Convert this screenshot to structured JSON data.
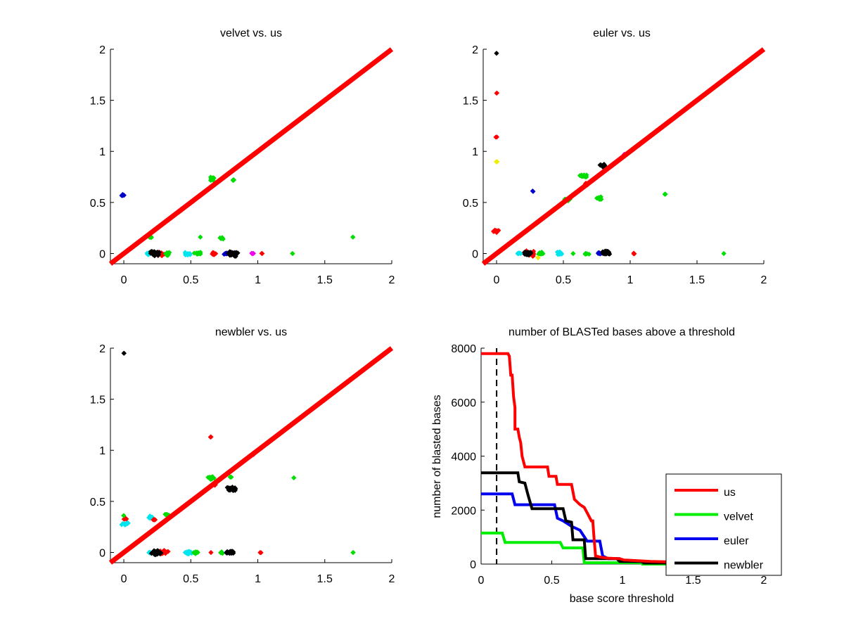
{
  "chart_data": [
    {
      "type": "scatter",
      "title": "velvet vs. us",
      "xlabel": "",
      "ylabel": "",
      "xlim": [
        -0.1,
        2
      ],
      "ylim": [
        -0.1,
        2
      ],
      "xticks": [
        "0",
        "0.5",
        "1",
        "1.5",
        "2"
      ],
      "yticks": [
        "0",
        "0.5",
        "1",
        "1.5",
        "2"
      ],
      "grid": false,
      "reference_line": {
        "from": [
          -0.1,
          -0.1
        ],
        "to": [
          2,
          2
        ],
        "color": "#ff0000"
      },
      "clusters": [
        {
          "color": "#0000cc",
          "x": -0.01,
          "y": 0.57,
          "spread": 0.02,
          "n": 10
        },
        {
          "color": "#00dd00",
          "x": 0.66,
          "y": 0.73,
          "spread": 0.03,
          "n": 16
        },
        {
          "color": "#00dd00",
          "x": 0.82,
          "y": 0.72,
          "spread": 0.01,
          "n": 5
        },
        {
          "color": "#00dd00",
          "x": 0.2,
          "y": 0.16,
          "spread": 0.015,
          "n": 6
        },
        {
          "color": "#00dd00",
          "x": 0.57,
          "y": 0.16,
          "spread": 0.003,
          "n": 2
        },
        {
          "color": "#00dd00",
          "x": 0.73,
          "y": 0.15,
          "spread": 0.015,
          "n": 8
        },
        {
          "color": "#00dd00",
          "x": 1.71,
          "y": 0.16,
          "spread": 0.003,
          "n": 2
        },
        {
          "color": "#00e5ee",
          "x": 0.18,
          "y": 0.0,
          "spread": 0.02,
          "n": 10
        },
        {
          "color": "#ff0000",
          "x": 0.27,
          "y": 0.0,
          "spread": 0.04,
          "n": 20
        },
        {
          "color": "#000000",
          "x": 0.23,
          "y": 0.0,
          "spread": 0.035,
          "n": 40
        },
        {
          "color": "#00dd00",
          "x": 0.33,
          "y": 0.0,
          "spread": 0.025,
          "n": 14
        },
        {
          "color": "#00e5ee",
          "x": 0.47,
          "y": 0.0,
          "spread": 0.025,
          "n": 16
        },
        {
          "color": "#00dd00",
          "x": 0.55,
          "y": 0.0,
          "spread": 0.025,
          "n": 12
        },
        {
          "color": "#ff0000",
          "x": 0.67,
          "y": 0.0,
          "spread": 0.025,
          "n": 14
        },
        {
          "color": "#0000cc",
          "x": 0.76,
          "y": 0.0,
          "spread": 0.015,
          "n": 8
        },
        {
          "color": "#000000",
          "x": 0.81,
          "y": 0.0,
          "spread": 0.04,
          "n": 45
        },
        {
          "color": "#ee00ee",
          "x": 0.96,
          "y": 0.0,
          "spread": 0.01,
          "n": 6
        },
        {
          "color": "#ff0000",
          "x": 1.03,
          "y": 0.0,
          "spread": 0.005,
          "n": 3
        },
        {
          "color": "#00dd00",
          "x": 1.26,
          "y": 0.0,
          "spread": 0.003,
          "n": 2
        }
      ]
    },
    {
      "type": "scatter",
      "title": "euler vs. us",
      "xlabel": "",
      "ylabel": "",
      "xlim": [
        -0.1,
        2
      ],
      "ylim": [
        -0.1,
        2
      ],
      "xticks": [
        "0",
        "0.5",
        "1",
        "1.5",
        "2"
      ],
      "yticks": [
        "0",
        "0.5",
        "1",
        "1.5",
        "2"
      ],
      "grid": false,
      "reference_line": {
        "from": [
          -0.1,
          -0.1
        ],
        "to": [
          2,
          2
        ],
        "color": "#ff0000"
      },
      "clusters": [
        {
          "color": "#000000",
          "x": 0.0,
          "y": 1.96,
          "spread": 0.003,
          "n": 2
        },
        {
          "color": "#ff0000",
          "x": 0.0,
          "y": 1.57,
          "spread": 0.003,
          "n": 2
        },
        {
          "color": "#ff0000",
          "x": 0.0,
          "y": 1.14,
          "spread": 0.005,
          "n": 3
        },
        {
          "color": "#eeee00",
          "x": 0.0,
          "y": 0.9,
          "spread": 0.008,
          "n": 4
        },
        {
          "color": "#ff0000",
          "x": 0.0,
          "y": 0.22,
          "spread": 0.025,
          "n": 14
        },
        {
          "color": "#0000cc",
          "x": 0.27,
          "y": 0.61,
          "spread": 0.005,
          "n": 3
        },
        {
          "color": "#00dd00",
          "x": 0.65,
          "y": 0.76,
          "spread": 0.03,
          "n": 16
        },
        {
          "color": "#ff0000",
          "x": 0.67,
          "y": 0.68,
          "spread": 0.02,
          "n": 8
        },
        {
          "color": "#00dd00",
          "x": 0.53,
          "y": 0.53,
          "spread": 0.025,
          "n": 12
        },
        {
          "color": "#00dd00",
          "x": 0.77,
          "y": 0.54,
          "spread": 0.025,
          "n": 12
        },
        {
          "color": "#000000",
          "x": 0.8,
          "y": 0.86,
          "spread": 0.025,
          "n": 22
        },
        {
          "color": "#ee00ee",
          "x": 0.96,
          "y": 0.97,
          "spread": 0.008,
          "n": 3
        },
        {
          "color": "#00dd00",
          "x": 1.26,
          "y": 0.58,
          "spread": 0.006,
          "n": 3
        },
        {
          "color": "#00e5ee",
          "x": 0.17,
          "y": 0.0,
          "spread": 0.015,
          "n": 8
        },
        {
          "color": "#ff0000",
          "x": 0.25,
          "y": 0.0,
          "spread": 0.04,
          "n": 18
        },
        {
          "color": "#000000",
          "x": 0.23,
          "y": 0.0,
          "spread": 0.03,
          "n": 40
        },
        {
          "color": "#00dd00",
          "x": 0.33,
          "y": 0.0,
          "spread": 0.025,
          "n": 14
        },
        {
          "color": "#eeee00",
          "x": 0.31,
          "y": -0.04,
          "spread": 0.005,
          "n": 2
        },
        {
          "color": "#00e5ee",
          "x": 0.47,
          "y": 0.0,
          "spread": 0.025,
          "n": 16
        },
        {
          "color": "#00dd00",
          "x": 0.57,
          "y": 0.0,
          "spread": 0.004,
          "n": 2
        },
        {
          "color": "#00dd00",
          "x": 0.67,
          "y": 0.0,
          "spread": 0.02,
          "n": 8
        },
        {
          "color": "#0000cc",
          "x": 0.77,
          "y": 0.0,
          "spread": 0.015,
          "n": 8
        },
        {
          "color": "#000000",
          "x": 0.82,
          "y": 0.01,
          "spread": 0.035,
          "n": 40
        },
        {
          "color": "#ff0000",
          "x": 1.03,
          "y": 0.0,
          "spread": 0.008,
          "n": 3
        },
        {
          "color": "#00dd00",
          "x": 1.7,
          "y": 0.0,
          "spread": 0.003,
          "n": 2
        }
      ]
    },
    {
      "type": "scatter",
      "title": "newbler vs. us",
      "xlabel": "",
      "ylabel": "",
      "xlim": [
        -0.1,
        2
      ],
      "ylim": [
        -0.1,
        2
      ],
      "xticks": [
        "0",
        "0.5",
        "1",
        "1.5",
        "2"
      ],
      "yticks": [
        "0",
        "0.5",
        "1",
        "1.5",
        "2"
      ],
      "grid": false,
      "reference_line": {
        "from": [
          -0.1,
          -0.1
        ],
        "to": [
          2,
          2
        ],
        "color": "#ff0000"
      },
      "clusters": [
        {
          "color": "#000000",
          "x": 0.0,
          "y": 1.95,
          "spread": 0.003,
          "n": 2
        },
        {
          "color": "#ff0000",
          "x": 0.65,
          "y": 1.13,
          "spread": 0.005,
          "n": 3
        },
        {
          "color": "#ee00ee",
          "x": 0.97,
          "y": 0.96,
          "spread": 0.008,
          "n": 4
        },
        {
          "color": "#00dd00",
          "x": 0.65,
          "y": 0.73,
          "spread": 0.03,
          "n": 16
        },
        {
          "color": "#00dd00",
          "x": 0.8,
          "y": 0.74,
          "spread": 0.01,
          "n": 4
        },
        {
          "color": "#00dd00",
          "x": 1.27,
          "y": 0.73,
          "spread": 0.003,
          "n": 2
        },
        {
          "color": "#ff0000",
          "x": 0.68,
          "y": 0.66,
          "spread": 0.01,
          "n": 5
        },
        {
          "color": "#000000",
          "x": 0.81,
          "y": 0.62,
          "spread": 0.035,
          "n": 35
        },
        {
          "color": "#00e5ee",
          "x": 0.01,
          "y": 0.28,
          "spread": 0.025,
          "n": 16
        },
        {
          "color": "#ff0000",
          "x": 0.01,
          "y": 0.33,
          "spread": 0.015,
          "n": 5
        },
        {
          "color": "#00dd00",
          "x": 0.0,
          "y": 0.36,
          "spread": 0.005,
          "n": 2
        },
        {
          "color": "#00e5ee",
          "x": 0.2,
          "y": 0.34,
          "spread": 0.025,
          "n": 14
        },
        {
          "color": "#ff0000",
          "x": 0.23,
          "y": 0.32,
          "spread": 0.012,
          "n": 6
        },
        {
          "color": "#00dd00",
          "x": 0.32,
          "y": 0.37,
          "spread": 0.015,
          "n": 8
        },
        {
          "color": "#00e5ee",
          "x": 0.19,
          "y": 0.0,
          "spread": 0.015,
          "n": 8
        },
        {
          "color": "#ff0000",
          "x": 0.3,
          "y": 0.0,
          "spread": 0.035,
          "n": 20
        },
        {
          "color": "#000000",
          "x": 0.24,
          "y": 0.0,
          "spread": 0.035,
          "n": 45
        },
        {
          "color": "#00e5ee",
          "x": 0.48,
          "y": 0.0,
          "spread": 0.03,
          "n": 18
        },
        {
          "color": "#00dd00",
          "x": 0.54,
          "y": 0.0,
          "spread": 0.02,
          "n": 12
        },
        {
          "color": "#ff0000",
          "x": 0.65,
          "y": 0.0,
          "spread": 0.004,
          "n": 2
        },
        {
          "color": "#00dd00",
          "x": 0.73,
          "y": 0.0,
          "spread": 0.015,
          "n": 8
        },
        {
          "color": "#0000cc",
          "x": 0.77,
          "y": 0.0,
          "spread": 0.012,
          "n": 6
        },
        {
          "color": "#000000",
          "x": 0.8,
          "y": 0.0,
          "spread": 0.03,
          "n": 25
        },
        {
          "color": "#ff0000",
          "x": 1.02,
          "y": 0.0,
          "spread": 0.006,
          "n": 3
        },
        {
          "color": "#00dd00",
          "x": 1.71,
          "y": 0.0,
          "spread": 0.003,
          "n": 2
        }
      ]
    },
    {
      "type": "line",
      "title": "number of BLASTed bases above a threshold",
      "xlabel": "base score threshold",
      "ylabel": "number of blasted bases",
      "xlim": [
        0,
        2
      ],
      "ylim": [
        0,
        8000
      ],
      "xticks": [
        "0",
        "0.5",
        "1",
        "1.5",
        "2"
      ],
      "yticks": [
        "0",
        "2000",
        "4000",
        "6000",
        "8000"
      ],
      "grid": false,
      "legend_position": "bottom-right",
      "reference_vline": {
        "x": 0.11,
        "style": "dashed",
        "color": "#000000"
      },
      "series": [
        {
          "name": "us",
          "color": "#ff0000",
          "points": [
            [
              0,
              7800
            ],
            [
              0.19,
              7800
            ],
            [
              0.2,
              7700
            ],
            [
              0.21,
              7000
            ],
            [
              0.22,
              7000
            ],
            [
              0.23,
              6200
            ],
            [
              0.24,
              5800
            ],
            [
              0.24,
              5000
            ],
            [
              0.26,
              5000
            ],
            [
              0.27,
              4700
            ],
            [
              0.28,
              4500
            ],
            [
              0.29,
              4000
            ],
            [
              0.31,
              3600
            ],
            [
              0.47,
              3600
            ],
            [
              0.48,
              3250
            ],
            [
              0.53,
              3250
            ],
            [
              0.54,
              2950
            ],
            [
              0.64,
              2950
            ],
            [
              0.66,
              2400
            ],
            [
              0.7,
              2200
            ],
            [
              0.73,
              2100
            ],
            [
              0.75,
              1900
            ],
            [
              0.78,
              1600
            ],
            [
              0.79,
              1600
            ],
            [
              0.8,
              900
            ],
            [
              0.81,
              300
            ],
            [
              0.85,
              250
            ],
            [
              0.9,
              220
            ],
            [
              0.98,
              200
            ],
            [
              1.01,
              150
            ],
            [
              1.2,
              100
            ],
            [
              1.4,
              70
            ],
            [
              2.0,
              50
            ]
          ]
        },
        {
          "name": "velvet",
          "color": "#00ee00",
          "points": [
            [
              0,
              1150
            ],
            [
              0.15,
              1150
            ],
            [
              0.17,
              800
            ],
            [
              0.56,
              800
            ],
            [
              0.58,
              600
            ],
            [
              0.72,
              600
            ],
            [
              0.73,
              50
            ],
            [
              1.13,
              50
            ],
            [
              1.14,
              0
            ],
            [
              2.0,
              0
            ]
          ]
        },
        {
          "name": "euler",
          "color": "#0000ee",
          "points": [
            [
              0,
              2600
            ],
            [
              0.22,
              2600
            ],
            [
              0.24,
              2200
            ],
            [
              0.52,
              2200
            ],
            [
              0.54,
              1700
            ],
            [
              0.58,
              1600
            ],
            [
              0.64,
              1400
            ],
            [
              0.7,
              1250
            ],
            [
              0.75,
              850
            ],
            [
              0.84,
              850
            ],
            [
              0.86,
              300
            ],
            [
              0.9,
              200
            ],
            [
              0.98,
              200
            ],
            [
              1.0,
              100
            ],
            [
              1.13,
              100
            ],
            [
              1.15,
              50
            ],
            [
              2.0,
              50
            ]
          ]
        },
        {
          "name": "newbler",
          "color": "#000000",
          "points": [
            [
              0,
              3380
            ],
            [
              0.26,
              3380
            ],
            [
              0.27,
              3050
            ],
            [
              0.31,
              3000
            ],
            [
              0.33,
              2600
            ],
            [
              0.36,
              2050
            ],
            [
              0.58,
              2050
            ],
            [
              0.6,
              1600
            ],
            [
              0.64,
              1550
            ],
            [
              0.65,
              900
            ],
            [
              0.73,
              900
            ],
            [
              0.74,
              200
            ],
            [
              0.96,
              200
            ],
            [
              0.98,
              100
            ],
            [
              1.14,
              100
            ],
            [
              1.15,
              40
            ],
            [
              2.0,
              40
            ]
          ]
        }
      ]
    }
  ]
}
